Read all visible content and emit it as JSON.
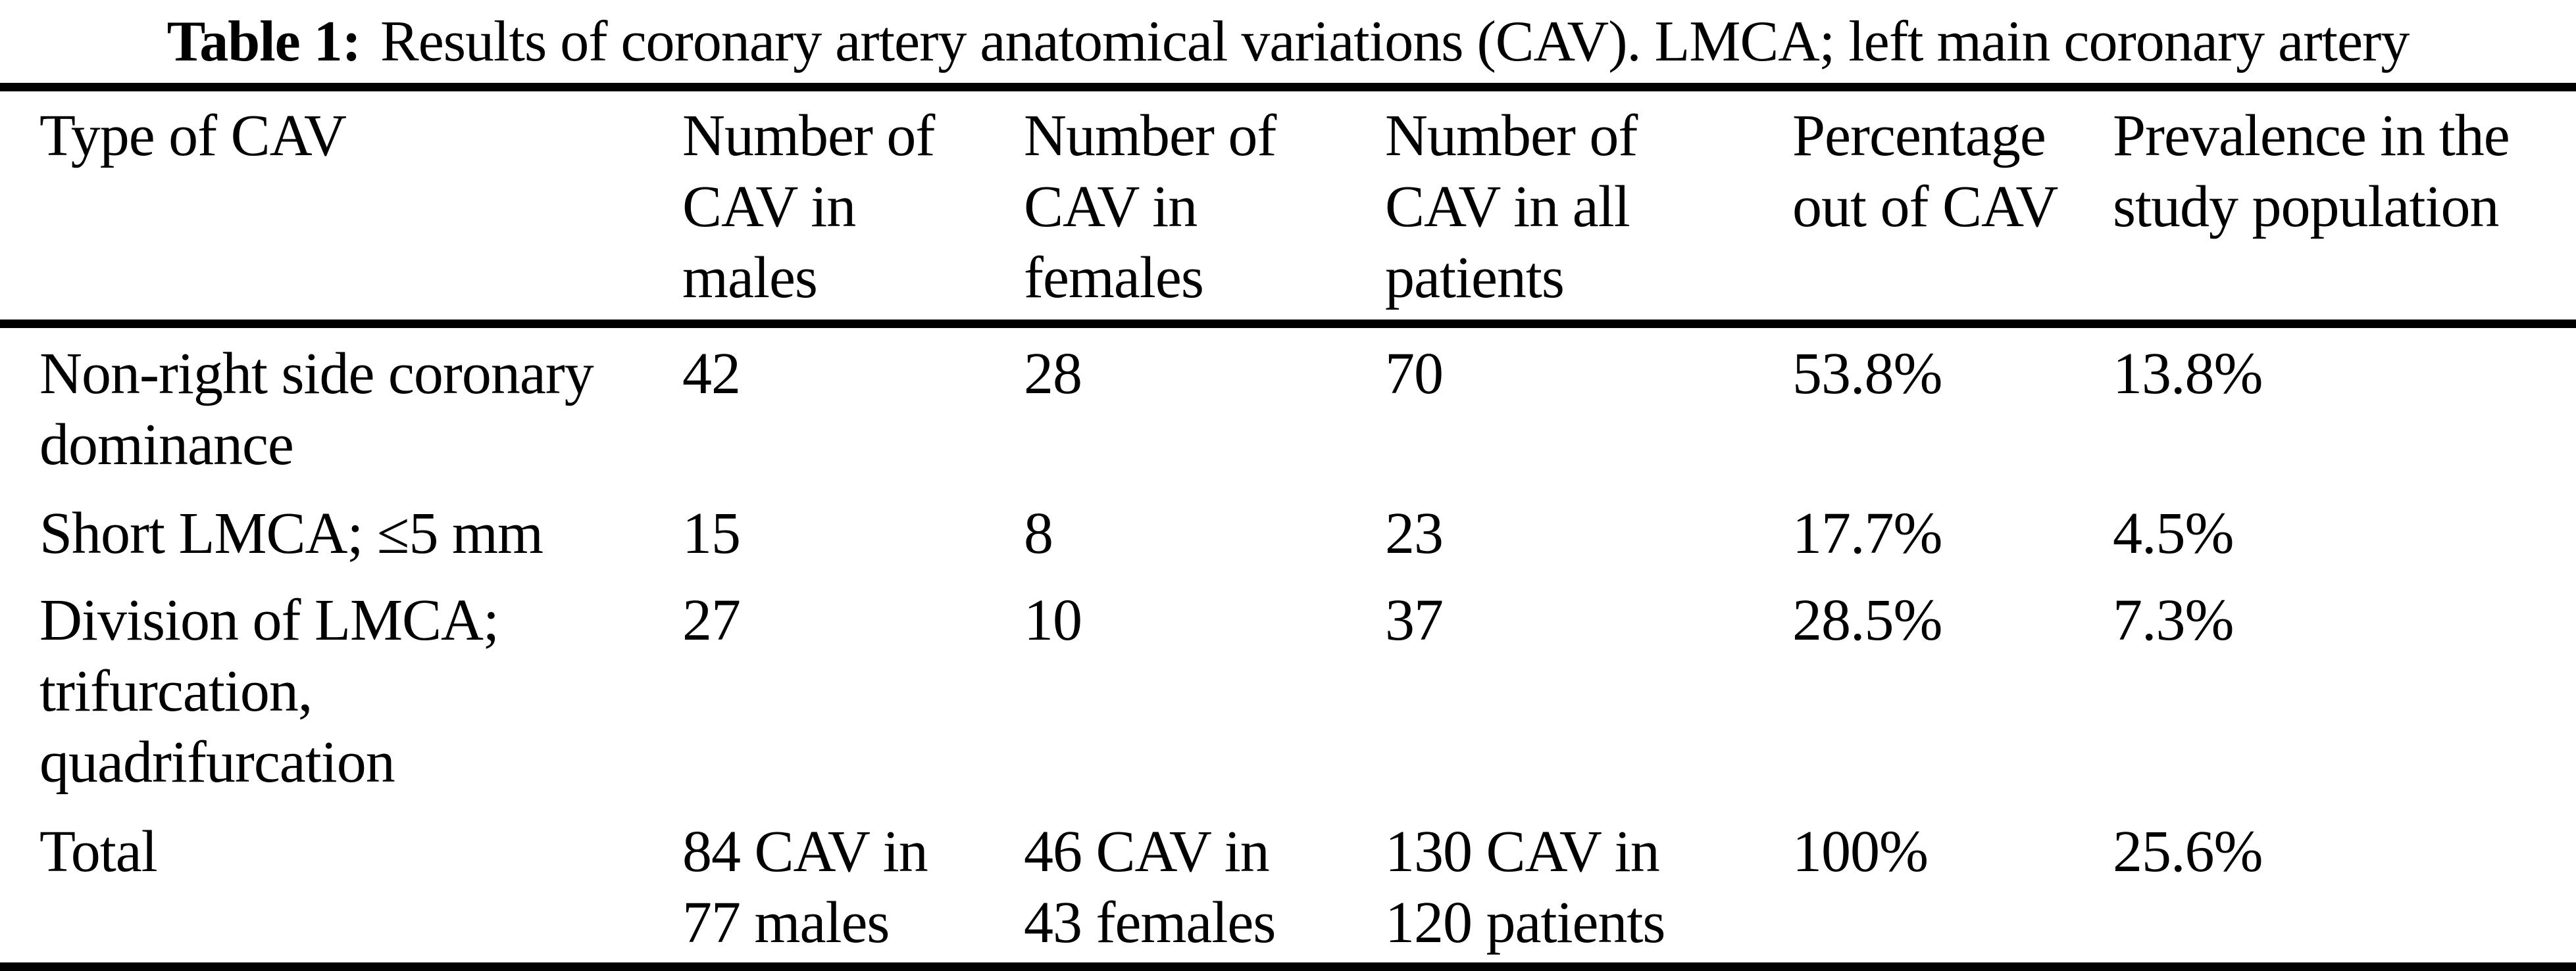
{
  "colors": {
    "background": "#ffffff",
    "text": "#000000",
    "rule": "#000000"
  },
  "caption": {
    "label": "Table 1:",
    "text": "Results of coronary artery anatomical variations (CAV). LMCA; left main coronary artery"
  },
  "table": {
    "columns": [
      "Type of CAV",
      "Number of\nCAV in\nmales",
      "Number of\nCAV in\nfemales",
      "Number of\nCAV in all\npatients",
      "Percentage\nout of CAV",
      "Prevalence in the\nstudy population"
    ],
    "rows": [
      [
        "Non-right side coronary\ndominance",
        "42",
        "28",
        "70",
        "53.8%",
        "13.8%"
      ],
      [
        "Short LMCA; ≤5 mm",
        "15",
        "8",
        "23",
        "17.7%",
        "4.5%"
      ],
      [
        "Division of LMCA;\ntrifurcation,\nquadrifurcation",
        "27",
        "10",
        "37",
        "28.5%",
        "7.3%"
      ],
      [
        "Total",
        "84 CAV in\n77 males",
        "46 CAV in\n43 females",
        "130 CAV in\n120 patients",
        "100%",
        "25.6%"
      ]
    ]
  }
}
